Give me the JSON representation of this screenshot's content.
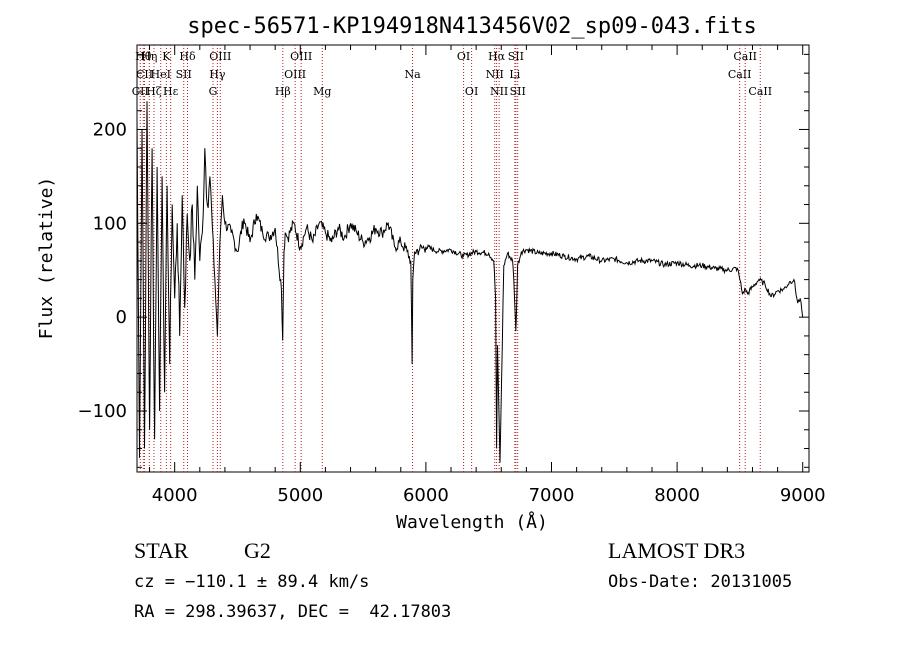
{
  "chart_data": {
    "type": "line",
    "title": "spec-56571-KP194918N413456V02_sp09-043.fits",
    "xlabel": "Wavelength (Å)",
    "ylabel": "Flux (relative)",
    "xlim": [
      3700,
      9050
    ],
    "ylim": [
      -165,
      290
    ],
    "x_ticks": [
      4000,
      5000,
      6000,
      7000,
      8000,
      9000
    ],
    "y_ticks": [
      -100,
      0,
      100,
      200
    ],
    "series": [
      {
        "name": "flux",
        "x": [
          3700,
          3720,
          3740,
          3760,
          3780,
          3800,
          3820,
          3840,
          3860,
          3880,
          3900,
          3920,
          3940,
          3960,
          3980,
          4000,
          4020,
          4040,
          4060,
          4080,
          4100,
          4120,
          4140,
          4160,
          4180,
          4200,
          4220,
          4240,
          4260,
          4280,
          4300,
          4320,
          4340,
          4360,
          4380,
          4400,
          4450,
          4500,
          4550,
          4600,
          4650,
          4700,
          4750,
          4800,
          4850,
          4860,
          4870,
          4880,
          4900,
          4950,
          5000,
          5050,
          5100,
          5150,
          5200,
          5250,
          5300,
          5350,
          5400,
          5450,
          5500,
          5550,
          5600,
          5650,
          5700,
          5750,
          5800,
          5850,
          5880,
          5890,
          5896,
          5910,
          5950,
          6000,
          6100,
          6200,
          6300,
          6400,
          6500,
          6540,
          6555,
          6563,
          6570,
          6590,
          6620,
          6650,
          6690,
          6700,
          6710,
          6716,
          6722,
          6730,
          6760,
          6800,
          6900,
          7000,
          7100,
          7200,
          7300,
          7400,
          7500,
          7600,
          7700,
          7800,
          7900,
          8000,
          8100,
          8200,
          8300,
          8400,
          8480,
          8500,
          8520,
          8545,
          8560,
          8600,
          8650,
          8700,
          8750,
          8800,
          8850,
          8900,
          8930,
          8960,
          8980,
          9000
        ],
        "y": [
          210,
          -150,
          200,
          -140,
          230,
          -120,
          180,
          -130,
          160,
          -100,
          150,
          -80,
          140,
          -50,
          120,
          20,
          100,
          -20,
          130,
          10,
          110,
          60,
          120,
          40,
          140,
          60,
          90,
          180,
          120,
          150,
          95,
          40,
          -20,
          80,
          130,
          100,
          90,
          70,
          105,
          80,
          110,
          90,
          85,
          95,
          30,
          -25,
          70,
          90,
          85,
          100,
          75,
          95,
          80,
          100,
          90,
          80,
          95,
          85,
          100,
          90,
          80,
          85,
          95,
          90,
          100,
          75,
          80,
          70,
          60,
          -50,
          40,
          70,
          72,
          75,
          70,
          72,
          65,
          70,
          68,
          60,
          20,
          -140,
          -30,
          -155,
          55,
          68,
          60,
          40,
          5,
          -15,
          10,
          55,
          70,
          72,
          68,
          68,
          65,
          62,
          65,
          60,
          62,
          58,
          60,
          60,
          56,
          58,
          55,
          55,
          52,
          50,
          52,
          40,
          25,
          30,
          25,
          32,
          40,
          35,
          22,
          28,
          30,
          38,
          40,
          15,
          20,
          0
        ]
      }
    ],
    "line_markers": [
      {
        "label": "CII",
        "x": 3726,
        "row": 2
      },
      {
        "label": "Hθ",
        "x": 3750,
        "row": 0
      },
      {
        "label": "CII",
        "x": 3760,
        "row": 1
      },
      {
        "label": "Hη",
        "x": 3798,
        "row": 0
      },
      {
        "label": "Hζ",
        "x": 3835,
        "row": 2
      },
      {
        "label": "HeI",
        "x": 3889,
        "row": 1
      },
      {
        "label": "K",
        "x": 3934,
        "row": 0
      },
      {
        "label": "Hε",
        "x": 3968,
        "row": 2
      },
      {
        "label": "SII",
        "x": 4072,
        "row": 1
      },
      {
        "label": "Hδ",
        "x": 4102,
        "row": 0
      },
      {
        "label": "OIII",
        "x": 4363,
        "row": 0
      },
      {
        "label": "Hγ",
        "x": 4340,
        "row": 1
      },
      {
        "label": "G",
        "x": 4305,
        "row": 2
      },
      {
        "label": "Hβ",
        "x": 4861,
        "row": 2
      },
      {
        "label": "OIII",
        "x": 4959,
        "row": 1
      },
      {
        "label": "OIII",
        "x": 5007,
        "row": 0
      },
      {
        "label": "Mg",
        "x": 5175,
        "row": 2
      },
      {
        "label": "Na",
        "x": 5894,
        "row": 1
      },
      {
        "label": "OI",
        "x": 6300,
        "row": 0
      },
      {
        "label": "OI",
        "x": 6364,
        "row": 2
      },
      {
        "label": "NII",
        "x": 6548,
        "row": 1
      },
      {
        "label": "Hα",
        "x": 6563,
        "row": 0
      },
      {
        "label": "NII",
        "x": 6583,
        "row": 2
      },
      {
        "label": "Li",
        "x": 6708,
        "row": 1
      },
      {
        "label": "SII",
        "x": 6716,
        "row": 0
      },
      {
        "label": "SII",
        "x": 6731,
        "row": 2
      },
      {
        "label": "CaII",
        "x": 8498,
        "row": 1
      },
      {
        "label": "CaII",
        "x": 8542,
        "row": 0
      },
      {
        "label": "CaII",
        "x": 8662,
        "row": 2
      }
    ],
    "marker_color": "#b22222"
  },
  "info": {
    "object_class": "STAR",
    "subclass": "G2",
    "survey": "LAMOST DR3",
    "cz": "cz = −110.1 ± 89.4 km/s",
    "obs_date": "Obs-Date: 20131005",
    "ra_dec": "RA = 298.39637, DEC =  42.17803"
  }
}
